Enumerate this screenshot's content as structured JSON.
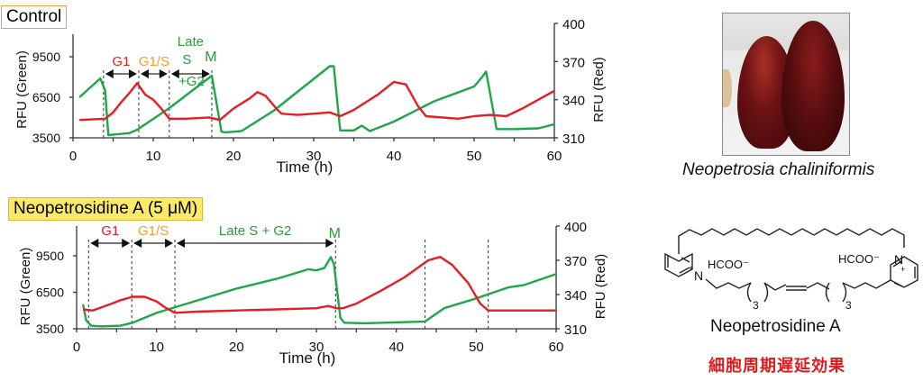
{
  "panels": {
    "control_label": "Control",
    "treatment_label": "Neopetrosidine A (5 μM)"
  },
  "organism": {
    "caption": "Neopetrosia chaliniformis",
    "photo": "sponge-photo"
  },
  "structure": {
    "name": "Neopetrosidine A",
    "counterion_left": "HCOO⁻",
    "counterion_right": "HCOO⁻",
    "n_plus_left": "+",
    "n_plus_right": "+",
    "atom_N": "N",
    "repeat_left": "3",
    "repeat_right": "3",
    "effect_jp": "細胞周期遅延効果"
  },
  "colors": {
    "green": "#1fa64a",
    "red": "#e31e24",
    "orange": "#f0a030",
    "phase_green": "#2a9a3a"
  },
  "chart_data": [
    {
      "type": "line",
      "title": "Control",
      "xlabel": "Time  (h)",
      "ylabel": "RFU (Green)",
      "y2label": "RFU (Red)",
      "xlim": [
        0,
        60
      ],
      "ylim": [
        3500,
        12500
      ],
      "y2lim": [
        310,
        400
      ],
      "xticks": [
        "0",
        "10",
        "20",
        "30",
        "40",
        "50",
        "60"
      ],
      "yticks": [
        "3500",
        "6500",
        "9500"
      ],
      "y2ticks": [
        "310",
        "340",
        "370",
        "400"
      ],
      "dashed_lines_x": [
        3.8,
        8.2,
        12.0,
        17.3
      ],
      "phases": [
        {
          "label": "G1",
          "color": "red",
          "from": 3.8,
          "to": 8.2
        },
        {
          "label": "G1/S",
          "color": "orange",
          "from": 8.2,
          "to": 12.0
        },
        {
          "label": "Late S +G2",
          "color": "green",
          "from": 12.0,
          "to": 17.3
        },
        {
          "label": "M",
          "color": "green",
          "at": 17.3
        }
      ],
      "series": [
        {
          "name": "Green",
          "axis": "left",
          "color": "#1fa64a",
          "x": [
            0.8,
            3.4,
            4.0,
            4.4,
            7,
            8,
            12,
            17.3,
            18.5,
            19,
            21,
            25,
            32,
            32.5,
            33.3,
            35,
            36,
            37,
            40,
            45,
            50,
            51,
            51.5,
            52.8,
            55,
            58,
            60
          ],
          "y": [
            6500,
            7900,
            7000,
            3700,
            3850,
            4100,
            5700,
            8100,
            3950,
            3900,
            4000,
            5500,
            8800,
            8800,
            4050,
            4050,
            4400,
            4000,
            4700,
            6200,
            7300,
            8000,
            8400,
            4150,
            4150,
            4200,
            4500
          ]
        },
        {
          "name": "Red",
          "axis": "right",
          "color": "#e31e24",
          "x": [
            0.8,
            4,
            5,
            6,
            7,
            8,
            9,
            10,
            11,
            12,
            14,
            17,
            18.3,
            20,
            22,
            23,
            24,
            25.5,
            26,
            28,
            32,
            33.3,
            35,
            38,
            40,
            41.5,
            43,
            44,
            48,
            50,
            52,
            54,
            56,
            58,
            60
          ],
          "y": [
            324,
            325,
            330,
            338,
            345,
            353,
            344,
            340,
            333,
            325,
            325,
            326,
            324,
            333,
            341,
            346,
            343,
            332,
            329,
            328,
            330,
            327,
            332,
            344,
            354,
            352,
            335,
            327,
            325,
            327,
            328,
            327,
            333,
            340,
            347
          ]
        }
      ]
    },
    {
      "type": "line",
      "title": "Neopetrosidine A (5 μM)",
      "xlabel": "Time (h)",
      "ylabel": "RFU (Green)",
      "y2label": "RFU (Red)",
      "xlim": [
        0,
        60
      ],
      "ylim": [
        3500,
        11500
      ],
      "y2lim": [
        310,
        400
      ],
      "xticks": [
        "0",
        "10",
        "20",
        "30",
        "40",
        "50",
        "60"
      ],
      "yticks": [
        "3500",
        "6500",
        "9500"
      ],
      "y2ticks": [
        "310",
        "340",
        "370",
        "400"
      ],
      "dashed_lines_x": [
        1.5,
        6.9,
        12.3,
        32.4,
        43.6,
        51.5
      ],
      "phases": [
        {
          "label": "G1",
          "color": "red",
          "from": 1.5,
          "to": 6.9
        },
        {
          "label": "G1/S",
          "color": "orange",
          "from": 6.9,
          "to": 12.3
        },
        {
          "label": "Late S + G2",
          "color": "green",
          "from": 12.3,
          "to": 32.4
        },
        {
          "label": "M",
          "color": "green",
          "at": 32.4
        }
      ],
      "series": [
        {
          "name": "Green",
          "axis": "left",
          "color": "#1fa64a",
          "x": [
            0.8,
            1.2,
            1.8,
            3,
            5.5,
            7,
            10,
            15,
            20,
            25,
            28,
            29,
            30,
            31,
            31.8,
            32.2,
            33,
            33.5,
            36,
            43.6,
            46,
            50,
            54,
            56,
            60
          ],
          "y": [
            5500,
            4200,
            3750,
            3700,
            3750,
            4000,
            4800,
            5800,
            6800,
            7600,
            8200,
            8400,
            8300,
            8500,
            9400,
            8800,
            4400,
            4000,
            3950,
            4100,
            5200,
            6000,
            6900,
            7100,
            8000
          ]
        },
        {
          "name": "Red",
          "axis": "right",
          "color": "#e31e24",
          "x": [
            0.8,
            2,
            4,
            5.5,
            7,
            8.5,
            10,
            11,
            12.3,
            15,
            20,
            25,
            30,
            31.5,
            32.5,
            33.3,
            35,
            38,
            41,
            44,
            45.5,
            47,
            49,
            50.5,
            51.5,
            53,
            56,
            60
          ],
          "y": [
            327,
            326,
            331,
            335,
            338,
            338,
            334,
            329,
            324,
            325,
            326,
            327,
            328,
            330,
            328,
            328,
            332,
            343,
            355,
            370,
            373,
            366,
            350,
            332,
            326,
            326,
            326,
            326
          ]
        }
      ]
    }
  ]
}
